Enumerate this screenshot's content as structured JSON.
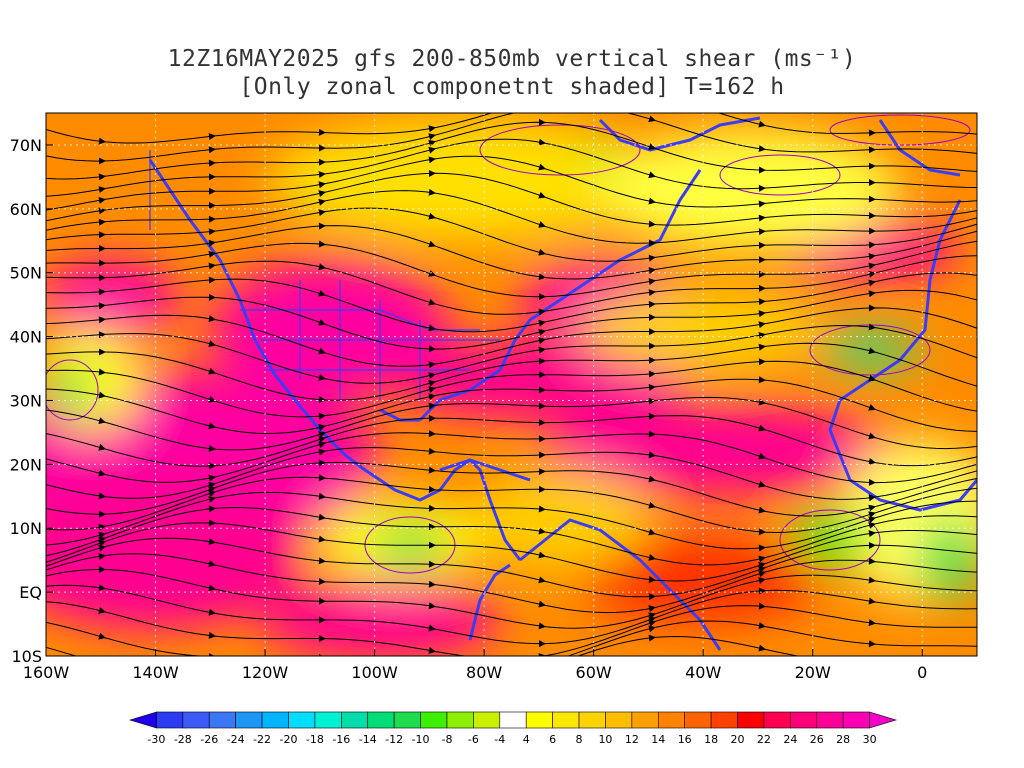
{
  "header": {
    "title_line1": "12Z16MAY2025 gfs 200-850mb vertical shear (ms⁻¹)",
    "title_line2": "[Only zonal componetnt shaded] T=162 h"
  },
  "map": {
    "lat_labels": [
      "70N",
      "60N",
      "50N",
      "40N",
      "30N",
      "20N",
      "10N",
      "EQ",
      "10S"
    ],
    "lon_labels": [
      "160W",
      "140W",
      "120W",
      "100W",
      "80W",
      "60W",
      "40W",
      "20W",
      "0"
    ],
    "lat_range": [
      -10,
      75
    ],
    "lon_range": [
      -160,
      10
    ],
    "streamline_color": "#000000",
    "coastline_color": "#3c3cf5",
    "contour_color": "#a000c8"
  },
  "colorbar": {
    "labels": [
      "-30",
      "-28",
      "-26",
      "-24",
      "-22",
      "-20",
      "-18",
      "-16",
      "-14",
      "-12",
      "-10",
      "-8",
      "-6",
      "-4",
      "4",
      "6",
      "8",
      "10",
      "12",
      "14",
      "16",
      "18",
      "20",
      "22",
      "24",
      "26",
      "28",
      "30"
    ],
    "colors": [
      "#1e00e6",
      "#2c3cf5",
      "#3c5af5",
      "#3c78f5",
      "#1e96f5",
      "#00b4ff",
      "#00dcff",
      "#00f0d2",
      "#00dcaa",
      "#00dc78",
      "#1edc50",
      "#3cf000",
      "#8cf000",
      "#c8f000",
      "#ffffff",
      "#ffff00",
      "#ffe600",
      "#ffd200",
      "#ffbe00",
      "#ffa000",
      "#ff8200",
      "#ff6400",
      "#ff4000",
      "#ff0000",
      "#ff0050",
      "#ff0078",
      "#ff0096",
      "#ff00b4",
      "#f000c8"
    ]
  }
}
